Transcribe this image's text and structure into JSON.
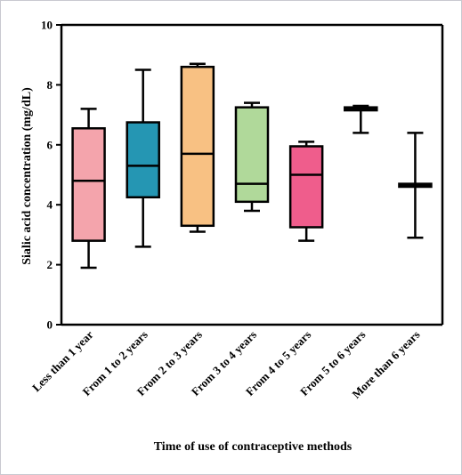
{
  "chart_data": {
    "type": "boxplot",
    "xlabel": "Time of use of contraceptive methods",
    "ylabel": "Sialic acid concentration (mg/dL)",
    "ylim": [
      0,
      10
    ],
    "yticks": [
      "0",
      "2",
      "4",
      "6",
      "8",
      "10"
    ],
    "grid": false,
    "legend": "none",
    "categories": [
      "Less than 1 year",
      "From 1 to 2 years",
      "From 2 to 3 years",
      "From 3 to 4 years",
      "From 4 to 5 years",
      "From 5 to 6 years",
      "More than 6 years"
    ],
    "boxes": [
      {
        "min": 1.9,
        "q1": 2.8,
        "median": 4.8,
        "q3": 6.55,
        "max": 7.2,
        "color": "#f4a4ac"
      },
      {
        "min": 2.6,
        "q1": 4.25,
        "median": 5.3,
        "q3": 6.75,
        "max": 8.5,
        "color": "#2596b3"
      },
      {
        "min": 3.1,
        "q1": 3.3,
        "median": 5.7,
        "q3": 8.6,
        "max": 8.7,
        "color": "#f8c183"
      },
      {
        "min": 3.8,
        "q1": 4.1,
        "median": 4.7,
        "q3": 7.25,
        "max": 7.4,
        "color": "#b0d99a"
      },
      {
        "min": 2.8,
        "q1": 3.25,
        "median": 5.0,
        "q3": 5.95,
        "max": 6.1,
        "color": "#ef5d8c"
      },
      {
        "min": 6.4,
        "q1": 7.15,
        "median": 7.2,
        "q3": 7.25,
        "max": 7.3,
        "color": "#ffffff"
      },
      {
        "min": 2.9,
        "q1": 4.6,
        "median": 4.65,
        "q3": 4.7,
        "max": 6.4,
        "color": "#ffffff"
      }
    ]
  }
}
